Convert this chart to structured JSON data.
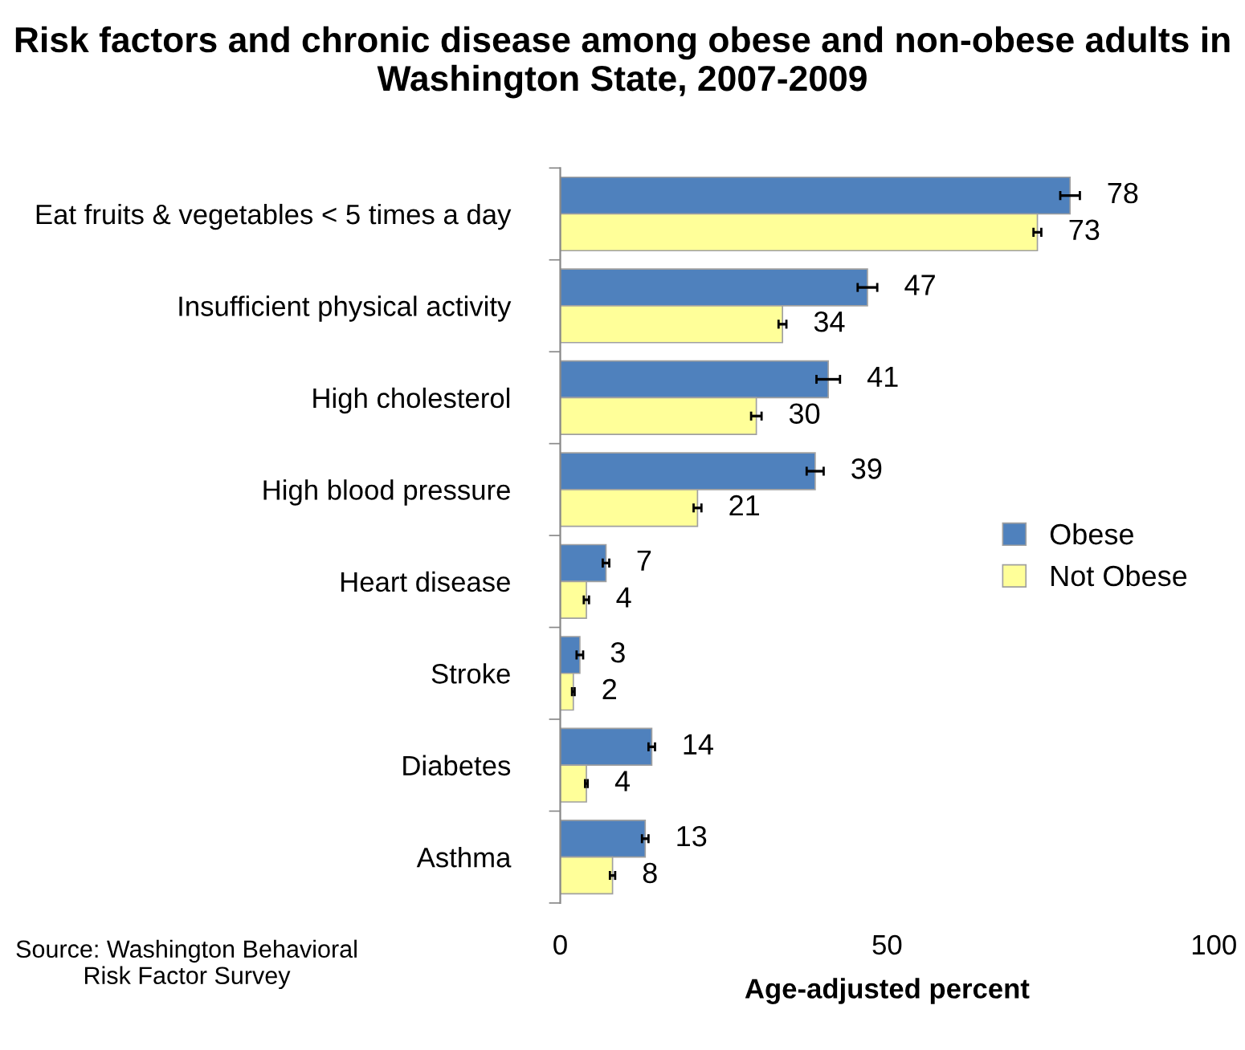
{
  "chart_data": {
    "type": "bar",
    "orientation": "horizontal",
    "title": "Risk factors and chronic disease among obese and non-obese adults in Washington State, 2007-2009",
    "xlabel": "Age-adjusted percent",
    "categories": [
      "Eat fruits & vegetables < 5 times a day",
      "Insufficient physical activity",
      "High cholesterol",
      "High blood pressure",
      "Heart disease",
      "Stroke",
      "Diabetes",
      "Asthma"
    ],
    "series": [
      {
        "name": "Obese",
        "color": "#4f81bd",
        "values": [
          78,
          47,
          41,
          39,
          7,
          3,
          14,
          13
        ],
        "errors": [
          1.5,
          1.5,
          1.8,
          1.3,
          0.5,
          0.5,
          0.5,
          0.5
        ]
      },
      {
        "name": "Not Obese",
        "color": "#ffff99",
        "values": [
          73,
          34,
          30,
          21,
          4,
          2,
          4,
          8
        ],
        "errors": [
          0.6,
          0.6,
          0.8,
          0.6,
          0.4,
          0.2,
          0.2,
          0.4
        ]
      }
    ],
    "xlim": [
      0,
      100
    ],
    "xticks": [
      0,
      50,
      100
    ],
    "data_labels": true,
    "grid": false,
    "legend": "right",
    "annotations": [
      "Source: Washington Behavioral Risk Factor Survey"
    ]
  }
}
